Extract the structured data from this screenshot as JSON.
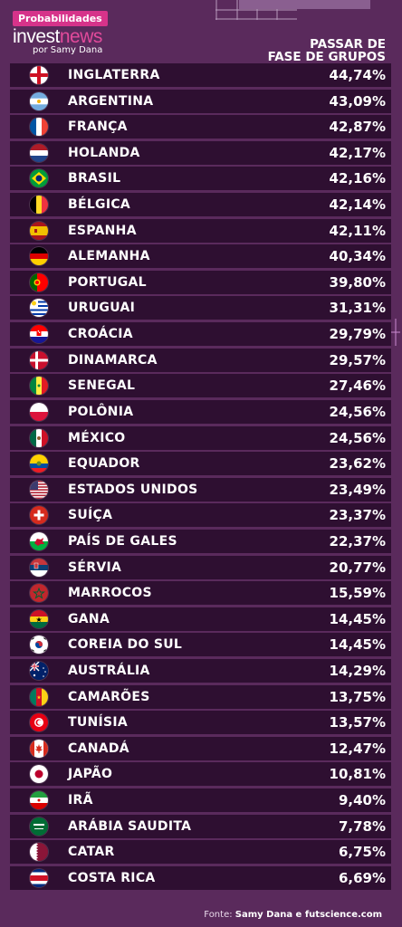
{
  "header": {
    "tag": "Probabilidades",
    "logo_prefix": "invest",
    "logo_highlight": "news",
    "logo_sub": "por Samy Dana",
    "column_title_line1": "PASSAR DE",
    "column_title_line2": "FASE DE GRUPOS"
  },
  "source": {
    "prefix": "Fonte: ",
    "text": "Samy Dana e futscience.com"
  },
  "colors": {
    "background": "#5a2a5c",
    "row": "#2e0f31",
    "accent": "#d6338a"
  },
  "chart_data": {
    "type": "table",
    "title": "",
    "column": "PASSAR DE FASE DE GRUPOS",
    "rows": [
      {
        "country": "INGLATERRA",
        "value": "44,74%",
        "flag": "england"
      },
      {
        "country": "ARGENTINA",
        "value": "43,09%",
        "flag": "argentina"
      },
      {
        "country": "FRANÇA",
        "value": "42,87%",
        "flag": "france"
      },
      {
        "country": "HOLANDA",
        "value": "42,17%",
        "flag": "netherlands"
      },
      {
        "country": "BRASIL",
        "value": "42,16%",
        "flag": "brazil"
      },
      {
        "country": "BÉLGICA",
        "value": "42,14%",
        "flag": "belgium"
      },
      {
        "country": "ESPANHA",
        "value": "42,11%",
        "flag": "spain"
      },
      {
        "country": "ALEMANHA",
        "value": "40,34%",
        "flag": "germany"
      },
      {
        "country": "PORTUGAL",
        "value": "39,80%",
        "flag": "portugal"
      },
      {
        "country": "URUGUAI",
        "value": "31,31%",
        "flag": "uruguay"
      },
      {
        "country": "CROÁCIA",
        "value": "29,79%",
        "flag": "croatia"
      },
      {
        "country": "DINAMARCA",
        "value": "29,57%",
        "flag": "denmark"
      },
      {
        "country": "SENEGAL",
        "value": "27,46%",
        "flag": "senegal"
      },
      {
        "country": "POLÔNIA",
        "value": "24,56%",
        "flag": "poland"
      },
      {
        "country": "MÉXICO",
        "value": "24,56%",
        "flag": "mexico"
      },
      {
        "country": "EQUADOR",
        "value": "23,62%",
        "flag": "ecuador"
      },
      {
        "country": "ESTADOS UNIDOS",
        "value": "23,49%",
        "flag": "usa"
      },
      {
        "country": "SUÍÇA",
        "value": "23,37%",
        "flag": "switzerland"
      },
      {
        "country": "PAÍS DE GALES",
        "value": "22,37%",
        "flag": "wales"
      },
      {
        "country": "SÉRVIA",
        "value": "20,77%",
        "flag": "serbia"
      },
      {
        "country": "MARROCOS",
        "value": "15,59%",
        "flag": "morocco"
      },
      {
        "country": "GANA",
        "value": "14,45%",
        "flag": "ghana"
      },
      {
        "country": "COREIA DO SUL",
        "value": "14,45%",
        "flag": "south-korea"
      },
      {
        "country": "AUSTRÁLIA",
        "value": "14,29%",
        "flag": "australia"
      },
      {
        "country": "CAMARÕES",
        "value": "13,75%",
        "flag": "cameroon"
      },
      {
        "country": "TUNÍSIA",
        "value": "13,57%",
        "flag": "tunisia"
      },
      {
        "country": "CANADÁ",
        "value": "12,47%",
        "flag": "canada"
      },
      {
        "country": "JAPÃO",
        "value": "10,81%",
        "flag": "japan"
      },
      {
        "country": "IRÃ",
        "value": "9,40%",
        "flag": "iran"
      },
      {
        "country": "ARÁBIA SAUDITA",
        "value": "7,78%",
        "flag": "saudi-arabia"
      },
      {
        "country": "CATAR",
        "value": "6,75%",
        "flag": "qatar"
      },
      {
        "country": "COSTA RICA",
        "value": "6,69%",
        "flag": "costa-rica"
      }
    ]
  }
}
